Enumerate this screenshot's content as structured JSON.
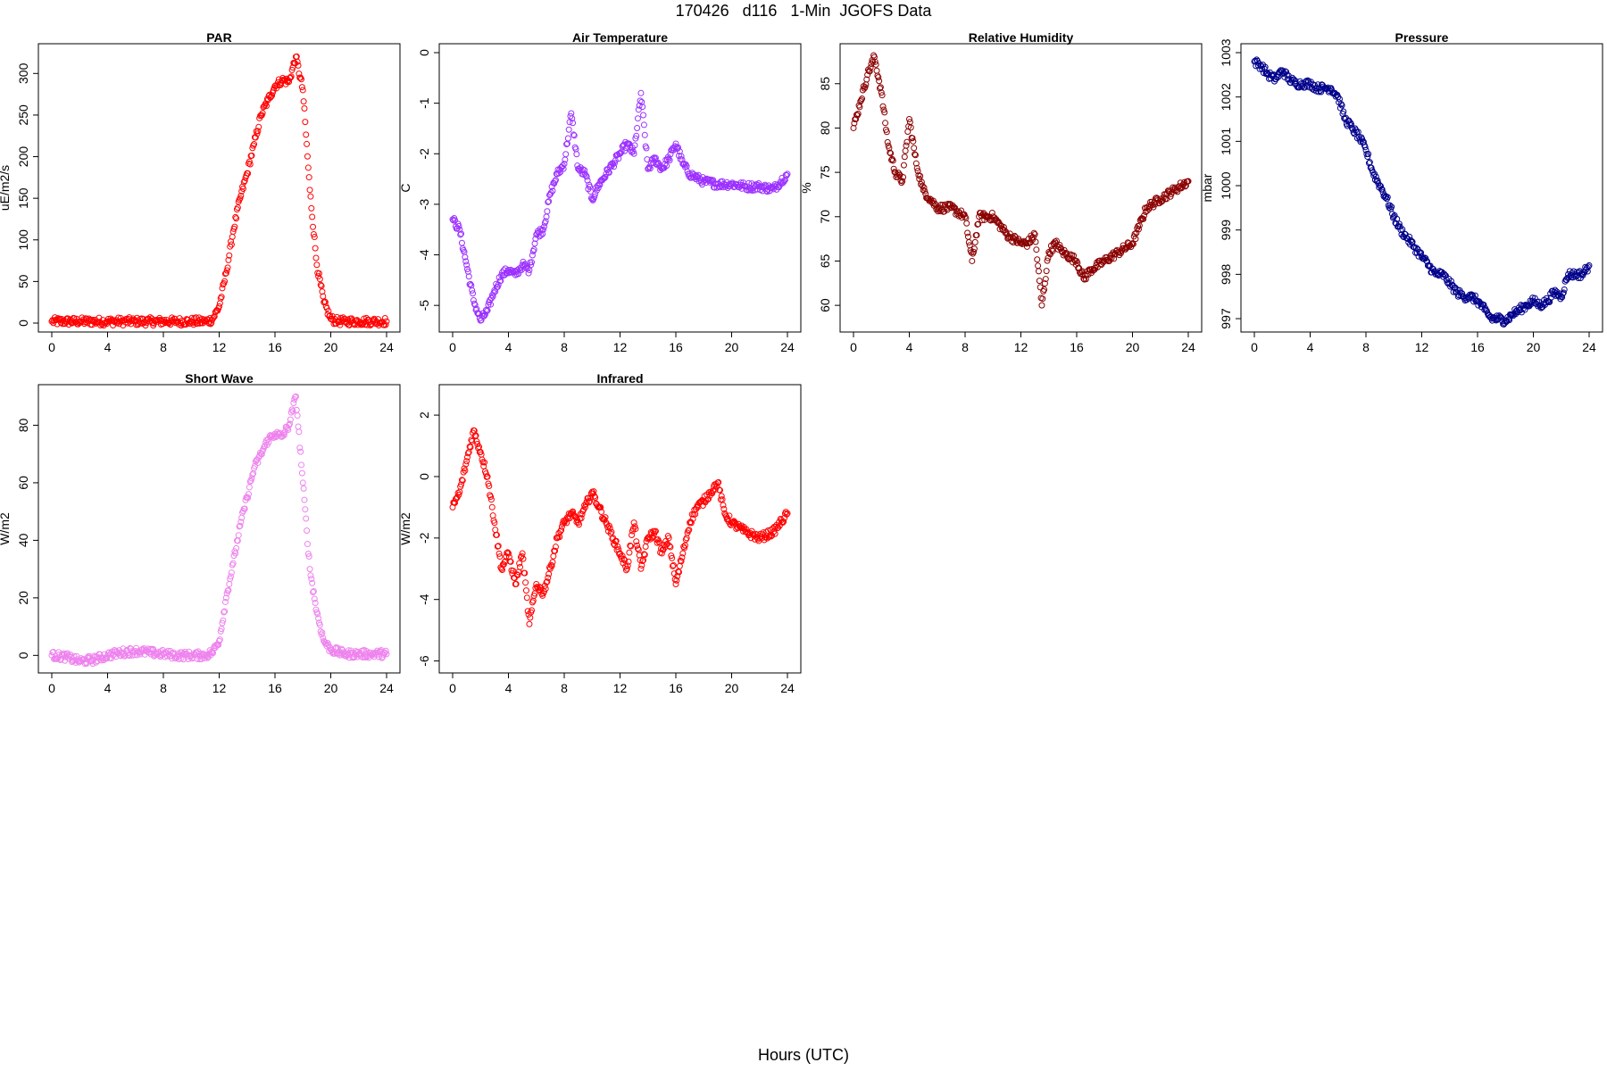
{
  "page": {
    "title": "170426   d116   1-Min  JGOFS Data",
    "footer": "Hours (UTC)"
  },
  "chart_data": [
    {
      "type": "scatter",
      "title": "PAR",
      "xlabel": "",
      "ylabel": "uE/m2/s",
      "color": "#ff0000",
      "xlim": [
        0,
        24
      ],
      "ylim": [
        0,
        325
      ],
      "xticks": [
        "0",
        "4",
        "8",
        "12",
        "16",
        "20",
        "24"
      ],
      "yticks": [
        "0",
        "50",
        "100",
        "150",
        "200",
        "250",
        "300"
      ],
      "x": [
        0,
        1,
        2,
        3,
        4,
        5,
        6,
        7,
        8,
        9,
        10,
        11,
        11.5,
        12,
        12.5,
        13,
        13.5,
        14,
        14.5,
        15,
        15.5,
        16,
        16.5,
        17,
        17.5,
        18,
        18.5,
        19,
        19.5,
        20,
        20.5,
        21,
        22,
        23,
        24
      ],
      "y": [
        2,
        2,
        2,
        2,
        2,
        2,
        2,
        2,
        2,
        2,
        2,
        2,
        4,
        20,
        60,
        110,
        150,
        180,
        215,
        250,
        268,
        285,
        292,
        290,
        320,
        280,
        160,
        70,
        25,
        5,
        2,
        2,
        2,
        2,
        2
      ]
    },
    {
      "type": "scatter",
      "title": "Air Temperature",
      "xlabel": "",
      "ylabel": "C",
      "color": "#9b30ff",
      "xlim": [
        0,
        24
      ],
      "ylim": [
        -5.35,
        0
      ],
      "xticks": [
        "0",
        "4",
        "8",
        "12",
        "16",
        "20",
        "24"
      ],
      "yticks": [
        "-5",
        "-4",
        "-3",
        "-2",
        "-1",
        "0"
      ],
      "x": [
        0,
        0.5,
        1,
        1.5,
        2,
        2.5,
        3,
        3.5,
        4,
        4.5,
        5,
        5.5,
        6,
        6.5,
        7,
        7.5,
        8,
        8.5,
        9,
        9.5,
        10,
        10.5,
        11,
        11.5,
        12,
        12.5,
        13,
        13.5,
        14,
        14.5,
        15,
        15.5,
        16,
        16.5,
        17,
        18,
        19,
        20,
        21,
        22,
        23,
        24
      ],
      "y": [
        -3.3,
        -3.5,
        -4.2,
        -4.9,
        -5.3,
        -5.1,
        -4.7,
        -4.4,
        -4.3,
        -4.4,
        -4.2,
        -4.3,
        -3.6,
        -3.5,
        -2.8,
        -2.4,
        -2.2,
        -1.2,
        -2.3,
        -2.4,
        -2.9,
        -2.6,
        -2.4,
        -2.2,
        -2.0,
        -1.8,
        -2.0,
        -0.8,
        -2.3,
        -2.1,
        -2.3,
        -2.1,
        -1.8,
        -2.2,
        -2.4,
        -2.55,
        -2.6,
        -2.6,
        -2.65,
        -2.65,
        -2.7,
        -2.4
      ]
    },
    {
      "type": "scatter",
      "title": "Relative Humidity",
      "xlabel": "",
      "ylabel": "%",
      "color": "#8b0000",
      "xlim": [
        0,
        24
      ],
      "ylim": [
        58,
        88.5
      ],
      "xticks": [
        "0",
        "4",
        "8",
        "12",
        "16",
        "20",
        "24"
      ],
      "yticks": [
        "60",
        "65",
        "70",
        "75",
        "80",
        "85"
      ],
      "x": [
        0,
        0.5,
        1,
        1.5,
        2,
        2.5,
        3,
        3.5,
        4,
        4.5,
        5,
        5.5,
        6,
        7,
        8,
        8.5,
        9,
        10,
        11,
        12,
        12.5,
        13,
        13.5,
        14,
        14.5,
        15,
        16,
        16.5,
        17,
        18,
        19,
        20,
        20.5,
        21,
        22,
        23,
        24
      ],
      "y": [
        80,
        83,
        86,
        88,
        84,
        78,
        75,
        74,
        81,
        76,
        73,
        72,
        71,
        71,
        70,
        65,
        70,
        70,
        68,
        67,
        67,
        68,
        60,
        66,
        67,
        66,
        65,
        63,
        64,
        65,
        66,
        67,
        69,
        71,
        72,
        73,
        74
      ]
    },
    {
      "type": "scatter",
      "title": "Pressure",
      "xlabel": "",
      "ylabel": "mbar",
      "color": "#00008b",
      "xlim": [
        0,
        24
      ],
      "ylim": [
        996.9,
        1003
      ],
      "xticks": [
        "0",
        "4",
        "8",
        "12",
        "16",
        "20",
        "24"
      ],
      "yticks": [
        "997",
        "998",
        "999",
        "1000",
        "1001",
        "1002",
        "1003"
      ],
      "x": [
        0,
        0.5,
        1,
        1.5,
        2,
        2.5,
        3,
        3.5,
        4,
        4.5,
        5,
        5.5,
        6,
        6.5,
        7,
        7.5,
        8,
        8.5,
        9,
        9.5,
        10,
        10.5,
        11,
        11.5,
        12,
        12.5,
        13,
        13.5,
        14,
        14.5,
        15,
        15.5,
        16,
        16.5,
        17,
        17.5,
        18,
        18.5,
        19,
        19.5,
        20,
        20.5,
        21,
        21.5,
        22,
        22.5,
        23,
        23.5,
        24
      ],
      "y": [
        1002.8,
        1002.7,
        1002.5,
        1002.4,
        1002.6,
        1002.4,
        1002.3,
        1002.3,
        1002.3,
        1002.2,
        1002.2,
        1002.2,
        1002.0,
        1001.5,
        1001.3,
        1001.1,
        1000.8,
        1000.3,
        1000.0,
        999.7,
        999.3,
        999.0,
        998.8,
        998.6,
        998.4,
        998.2,
        998.0,
        998.0,
        997.8,
        997.6,
        997.5,
        997.5,
        997.4,
        997.2,
        997.0,
        997.0,
        996.95,
        997.1,
        997.2,
        997.3,
        997.4,
        997.3,
        997.4,
        997.6,
        997.5,
        998.0,
        998.0,
        998.0,
        998.2
      ]
    },
    {
      "type": "scatter",
      "title": "Short Wave",
      "xlabel": "",
      "ylabel": "W/m2",
      "color": "#ee82ee",
      "xlim": [
        0,
        24
      ],
      "ylim": [
        -3,
        91
      ],
      "xticks": [
        "0",
        "4",
        "8",
        "12",
        "16",
        "20",
        "24"
      ],
      "yticks": [
        "0",
        "20",
        "40",
        "60",
        "80"
      ],
      "x": [
        0,
        1,
        2,
        3,
        4,
        5,
        6,
        7,
        8,
        9,
        10,
        11,
        11.5,
        12,
        12.5,
        13,
        13.5,
        14,
        14.5,
        15,
        15.5,
        16,
        16.5,
        17,
        17.5,
        18,
        18.5,
        19,
        19.5,
        20,
        21,
        22,
        23,
        24
      ],
      "y": [
        0,
        -0.5,
        -2,
        -1.5,
        0,
        1,
        1.5,
        1,
        0.5,
        0,
        0,
        0,
        1,
        5,
        20,
        32,
        45,
        55,
        65,
        70,
        75,
        77,
        76,
        80,
        90,
        60,
        30,
        15,
        5,
        2,
        0.5,
        0.5,
        0.5,
        0.5
      ]
    },
    {
      "type": "scatter",
      "title": "Infrared",
      "xlabel": "",
      "ylabel": "W/m2",
      "color": "#ff0000",
      "xlim": [
        0,
        24
      ],
      "ylim": [
        -6.1,
        2.7
      ],
      "xticks": [
        "0",
        "4",
        "8",
        "12",
        "16",
        "20",
        "24"
      ],
      "yticks": [
        "-6",
        "-4",
        "-2",
        "0",
        "2"
      ],
      "x": [
        0,
        0.5,
        1,
        1.5,
        2,
        2.5,
        3,
        3.5,
        4,
        4.5,
        5,
        5.5,
        6,
        6.5,
        7,
        7.5,
        8,
        8.5,
        9,
        9.5,
        10,
        10.5,
        11,
        11.5,
        12,
        12.5,
        13,
        13.5,
        14,
        14.5,
        15,
        15.5,
        16,
        16.5,
        17,
        17.5,
        18,
        18.5,
        19,
        19.5,
        20,
        21,
        22,
        23,
        24
      ],
      "y": [
        -1.0,
        -0.5,
        0.5,
        1.5,
        0.8,
        0.0,
        -1.5,
        -3.0,
        -2.5,
        -3.5,
        -2.5,
        -4.8,
        -3.5,
        -3.8,
        -3.0,
        -2.0,
        -1.5,
        -1.2,
        -1.5,
        -1.0,
        -0.5,
        -1.0,
        -1.5,
        -2.0,
        -2.5,
        -3.0,
        -1.5,
        -3.0,
        -2.0,
        -1.8,
        -2.5,
        -2.0,
        -3.5,
        -2.5,
        -1.5,
        -1.0,
        -0.8,
        -0.5,
        -0.2,
        -1.2,
        -1.5,
        -1.8,
        -2.0,
        -1.8,
        -1.2
      ]
    }
  ]
}
